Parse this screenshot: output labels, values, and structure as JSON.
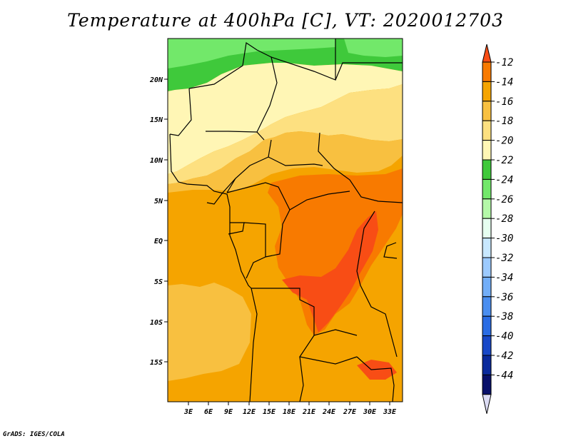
{
  "title": "Temperature at 400hPa [C], VT: 2020012703",
  "credit": "GrADS: IGES/COLA",
  "map": {
    "lon_ticks": [
      "3E",
      "6E",
      "9E",
      "12E",
      "15E",
      "18E",
      "21E",
      "24E",
      "27E",
      "30E",
      "33E"
    ],
    "lat_ticks": [
      "20N",
      "15N",
      "10N",
      "5N",
      "EQ",
      "5S",
      "10S",
      "15S"
    ],
    "background_color": "#f5a400",
    "border_color": "#000000"
  },
  "colorbar": {
    "labels": [
      "-12",
      "-14",
      "-16",
      "-18",
      "-20",
      "-22",
      "-24",
      "-26",
      "-28",
      "-30",
      "-32",
      "-34",
      "-36",
      "-38",
      "-40",
      "-42",
      "-44"
    ],
    "colors": [
      "#f84d15",
      "#f87a00",
      "#f5a400",
      "#f8c040",
      "#fde080",
      "#fff6b5",
      "#3fc93b",
      "#72e86a",
      "#b4f8a8",
      "#e6fff0",
      "#c8e8ff",
      "#9ccaff",
      "#72aef8",
      "#4a8ef0",
      "#2a6ce4",
      "#1848c8",
      "#0a2a9c",
      "#08106a",
      "#dcdcf4"
    ]
  }
}
